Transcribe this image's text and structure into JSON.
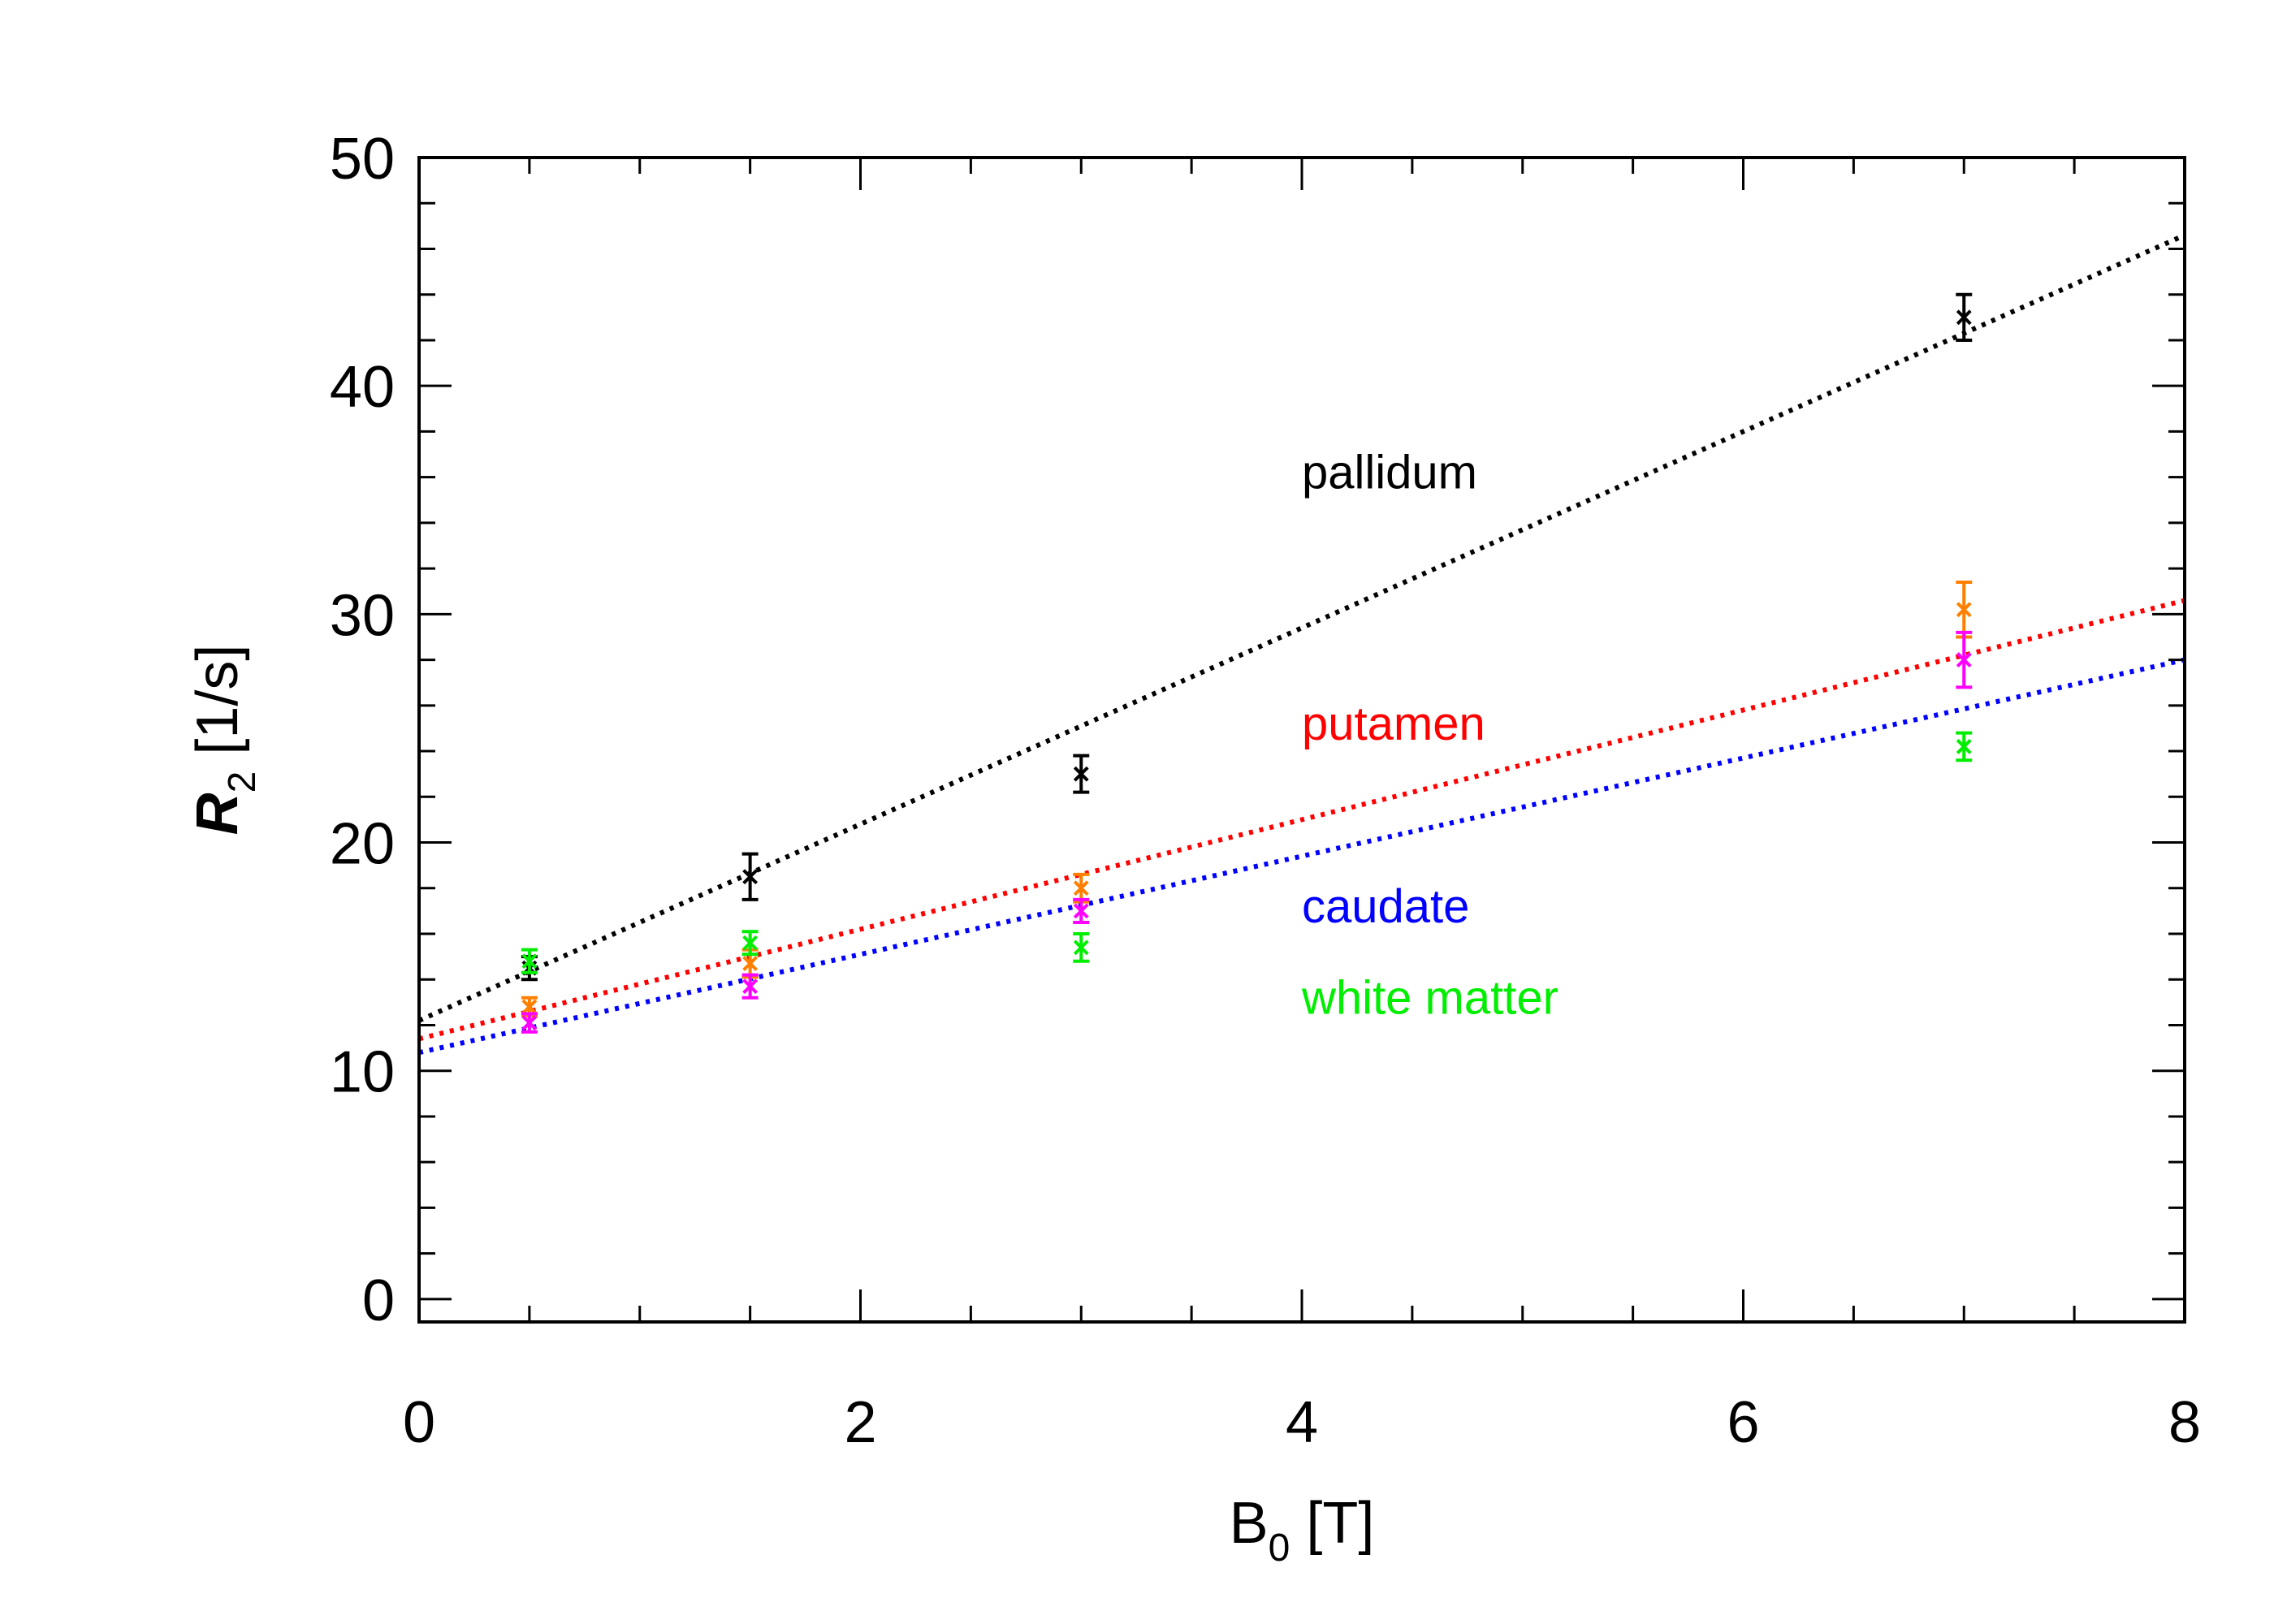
{
  "chart_data": {
    "type": "scatter",
    "title": "",
    "xlabel": {
      "main": "B",
      "sub": "0",
      "suffix": " [T]"
    },
    "ylabel": {
      "main": "R",
      "sub": "2",
      "suffix": " [1/s]"
    },
    "xlim": [
      0,
      8
    ],
    "ylim": [
      -1,
      50
    ],
    "x_ticks": [
      0,
      2,
      4,
      6,
      8
    ],
    "x_tick_labels": [
      "0",
      "2",
      "4",
      "6",
      "8"
    ],
    "x_minor_step": 0.5,
    "y_ticks": [
      0,
      10,
      20,
      30,
      40,
      50
    ],
    "y_tick_labels": [
      "0",
      "10",
      "20",
      "30",
      "40",
      "50"
    ],
    "y_minor_step": 2,
    "grid": false,
    "series": [
      {
        "name": "pallidum",
        "color": "#000000",
        "x": [
          0.5,
          1.5,
          3,
          7
        ],
        "y": [
          14.5,
          18.5,
          23.0,
          43.0
        ],
        "err": [
          0.5,
          1.0,
          0.8,
          1.0
        ],
        "fit": {
          "intercept": 12.2,
          "slope": 4.3
        },
        "label_pos": [
          4.0,
          35.5
        ]
      },
      {
        "name": "putamen",
        "color": "#ff0000",
        "marker_color": "#ff7f00",
        "x": [
          0.5,
          1.5,
          3,
          7
        ],
        "y": [
          12.8,
          14.7,
          18.0,
          30.2
        ],
        "err": [
          0.4,
          0.6,
          0.6,
          1.2
        ],
        "fit": {
          "intercept": 11.4,
          "slope": 2.4
        },
        "label_pos": [
          4.0,
          24.5
        ]
      },
      {
        "name": "caudate",
        "color": "#0000ff",
        "marker_color": "#ff00ff",
        "x": [
          0.5,
          1.5,
          3,
          7
        ],
        "y": [
          12.1,
          13.7,
          17.0,
          28.0
        ],
        "err": [
          0.4,
          0.5,
          0.5,
          1.2
        ],
        "fit": {
          "intercept": 10.8,
          "slope": 2.15
        },
        "label_pos": [
          4.0,
          16.5
        ]
      },
      {
        "name": "white matter",
        "color": "#00ee00",
        "x": [
          0.5,
          1.5,
          3,
          7
        ],
        "y": [
          14.8,
          15.6,
          15.4,
          24.2
        ],
        "err": [
          0.5,
          0.5,
          0.6,
          0.6
        ],
        "fit": null,
        "label_pos": [
          4.0,
          12.5
        ]
      }
    ]
  }
}
